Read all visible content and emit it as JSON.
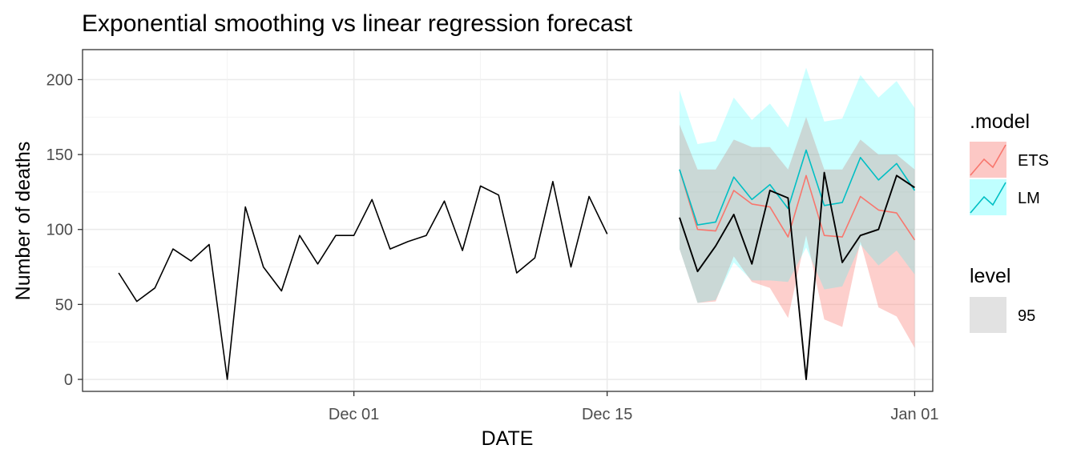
{
  "chart_data": {
    "type": "line",
    "title": "Exponential smoothing vs linear regression forecast",
    "xlabel": "DATE",
    "ylabel": "Number of deaths",
    "xlim": [
      "2020-11-16",
      "2021-01-02"
    ],
    "ylim": [
      -8,
      220
    ],
    "x_ticks": [
      {
        "date": "2020-12-01",
        "label": "Dec 01"
      },
      {
        "date": "2020-12-15",
        "label": "Dec 15"
      },
      {
        "date": "2021-01-01",
        "label": "Jan 01"
      }
    ],
    "y_ticks": [
      0,
      50,
      100,
      150,
      200
    ],
    "grid": true,
    "history": {
      "name": "actual",
      "x": [
        "2020-11-18",
        "2020-11-19",
        "2020-11-20",
        "2020-11-21",
        "2020-11-22",
        "2020-11-23",
        "2020-11-24",
        "2020-11-25",
        "2020-11-26",
        "2020-11-27",
        "2020-11-28",
        "2020-11-29",
        "2020-11-30",
        "2020-12-01",
        "2020-12-02",
        "2020-12-03",
        "2020-12-04",
        "2020-12-05",
        "2020-12-06",
        "2020-12-07",
        "2020-12-08",
        "2020-12-09",
        "2020-12-10",
        "2020-12-11",
        "2020-12-12",
        "2020-12-13",
        "2020-12-14",
        "2020-12-15",
        "2020-12-16",
        "2020-12-17"
      ],
      "values": [
        71,
        52,
        61,
        87,
        79,
        90,
        0,
        115,
        75,
        59,
        96,
        77,
        96,
        96,
        120,
        87,
        92,
        96,
        119,
        86,
        129,
        123,
        71,
        81,
        132,
        75,
        122,
        97,
        null,
        null
      ]
    },
    "actual_test": {
      "name": "actual",
      "x": [
        "2020-12-19",
        "2020-12-20",
        "2020-12-21",
        "2020-12-22",
        "2020-12-23",
        "2020-12-24",
        "2020-12-25",
        "2020-12-26",
        "2020-12-27",
        "2020-12-28",
        "2020-12-29",
        "2020-12-30",
        "2020-12-31"
      ],
      "values": [
        108,
        72,
        89,
        110,
        77,
        126,
        121,
        0,
        138,
        78,
        96,
        100,
        136
      ],
      "extra_end": {
        "x": "2021-01-01",
        "value": 128
      }
    },
    "forecast_x": [
      "2020-12-19",
      "2020-12-20",
      "2020-12-21",
      "2020-12-22",
      "2020-12-23",
      "2020-12-24",
      "2020-12-25",
      "2020-12-26",
      "2020-12-27",
      "2020-12-28",
      "2020-12-29",
      "2020-12-30",
      "2020-12-31",
      "2021-01-01"
    ],
    "series": [
      {
        "name": "ETS",
        "color": "#F8766D",
        "values": [
          140,
          100,
          99,
          126,
          117,
          115,
          95,
          136,
          96,
          95,
          122,
          113,
          111,
          93
        ],
        "lower": [
          87,
          51,
          52,
          82,
          65,
          61,
          41,
          96,
          40,
          35,
          92,
          48,
          42,
          21
        ],
        "upper": [
          170,
          140,
          140,
          160,
          155,
          155,
          140,
          175,
          140,
          140,
          160,
          150,
          150,
          140
        ]
      },
      {
        "name": "LM",
        "color": "#00BFC4",
        "values": [
          140,
          103,
          105,
          135,
          120,
          130,
          114,
          153,
          116,
          118,
          148,
          133,
          144,
          126
        ],
        "lower": [
          87,
          51,
          53,
          78,
          66,
          66,
          65,
          88,
          60,
          62,
          90,
          76,
          86,
          70
        ],
        "upper": [
          193,
          157,
          159,
          188,
          173,
          184,
          168,
          208,
          172,
          174,
          203,
          188,
          199,
          181
        ]
      }
    ],
    "legend": {
      "position": "right",
      "model_title": ".model",
      "model_items": [
        "ETS",
        "LM"
      ],
      "level_title": "level",
      "level_items": [
        "95"
      ],
      "level_swatch_color": "#d3d3d3"
    },
    "band_colors": {
      "ETS": "#F8766D",
      "LM": "#00FFFF"
    },
    "band_opacity": {
      "ETS": 0.35,
      "LM": 0.2
    },
    "history_color": "#000000"
  }
}
